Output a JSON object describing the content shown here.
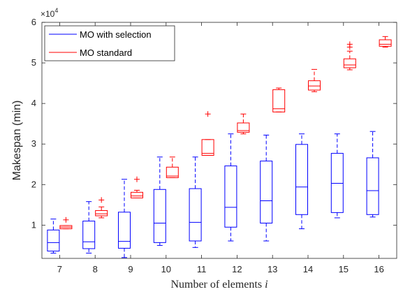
{
  "chart_data": {
    "type": "boxplot",
    "xlabel_text": "Number of elements ",
    "xlabel_var": "i",
    "ylabel": "Makespan (min)",
    "y_multiplier_base": "×10",
    "y_multiplier_exp": "4",
    "categories": [
      "7",
      "8",
      "9",
      "10",
      "11",
      "12",
      "13",
      "14",
      "15",
      "16"
    ],
    "ylim": [
      1800,
      60000
    ],
    "yticks": [
      10000,
      20000,
      30000,
      40000,
      50000,
      60000
    ],
    "ytick_labels": [
      "1",
      "2",
      "3",
      "4",
      "5",
      "6"
    ],
    "legend_position": "top-left",
    "series": [
      {
        "name": "MO with selection",
        "color": "#0000ff",
        "boxes": [
          {
            "whisker_low": 3100,
            "q1": 3600,
            "median": 5700,
            "q3": 8800,
            "whisker_high": 11500,
            "outliers": []
          },
          {
            "whisker_low": 3100,
            "q1": 4200,
            "median": 5900,
            "q3": 11000,
            "whisker_high": 15800,
            "outliers": []
          },
          {
            "whisker_low": 2000,
            "q1": 4300,
            "median": 6000,
            "q3": 13200,
            "whisker_high": 21300,
            "outliers": []
          },
          {
            "whisker_low": 5000,
            "q1": 5700,
            "median": 10500,
            "q3": 18800,
            "whisker_high": 26800,
            "outliers": []
          },
          {
            "whisker_low": 4500,
            "q1": 6100,
            "median": 10700,
            "q3": 19000,
            "whisker_high": 26800,
            "outliers": []
          },
          {
            "whisker_low": 6100,
            "q1": 9500,
            "median": 14400,
            "q3": 24600,
            "whisker_high": 32500,
            "outliers": []
          },
          {
            "whisker_low": 6100,
            "q1": 10500,
            "median": 16000,
            "q3": 25800,
            "whisker_high": 32200,
            "outliers": []
          },
          {
            "whisker_low": 9100,
            "q1": 12600,
            "median": 19400,
            "q3": 29900,
            "whisker_high": 32500,
            "outliers": []
          },
          {
            "whisker_low": 11800,
            "q1": 13100,
            "median": 20300,
            "q3": 27700,
            "whisker_high": 32500,
            "outliers": []
          },
          {
            "whisker_low": 12000,
            "q1": 12600,
            "median": 18500,
            "q3": 26600,
            "whisker_high": 33100,
            "outliers": []
          }
        ]
      },
      {
        "name": "MO standard",
        "color": "#ff0000",
        "boxes": [
          {
            "whisker_low": 9100,
            "q1": 9100,
            "median": 9500,
            "q3": 9900,
            "whisker_high": 9900,
            "outliers": [
              11300
            ]
          },
          {
            "whisker_low": 11800,
            "q1": 12300,
            "median": 12800,
            "q3": 13600,
            "whisker_high": 14500,
            "outliers": [
              16200
            ]
          },
          {
            "whisker_low": 16700,
            "q1": 16700,
            "median": 17200,
            "q3": 18100,
            "whisker_high": 18600,
            "outliers": [
              21300
            ]
          },
          {
            "whisker_low": 21700,
            "q1": 21700,
            "median": 22100,
            "q3": 24300,
            "whisker_high": 26800,
            "outliers": []
          },
          {
            "whisker_low": 27200,
            "q1": 27200,
            "median": 27700,
            "q3": 31100,
            "whisker_high": 31100,
            "outliers": [
              37400
            ]
          },
          {
            "whisker_low": 32500,
            "q1": 32900,
            "median": 33300,
            "q3": 35200,
            "whisker_high": 37400,
            "outliers": []
          },
          {
            "whisker_low": 37900,
            "q1": 37900,
            "median": 38700,
            "q3": 43400,
            "whisker_high": 43800,
            "outliers": []
          },
          {
            "whisker_low": 42900,
            "q1": 43300,
            "median": 44300,
            "q3": 45600,
            "whisker_high": 48400,
            "outliers": []
          },
          {
            "whisker_low": 48300,
            "q1": 48800,
            "median": 49500,
            "q3": 51000,
            "whisker_high": 52900,
            "outliers": [
              53900,
              54600
            ]
          },
          {
            "whisker_low": 53900,
            "q1": 54100,
            "median": 54600,
            "q3": 55700,
            "whisker_high": 56500,
            "outliers": []
          }
        ]
      }
    ]
  }
}
